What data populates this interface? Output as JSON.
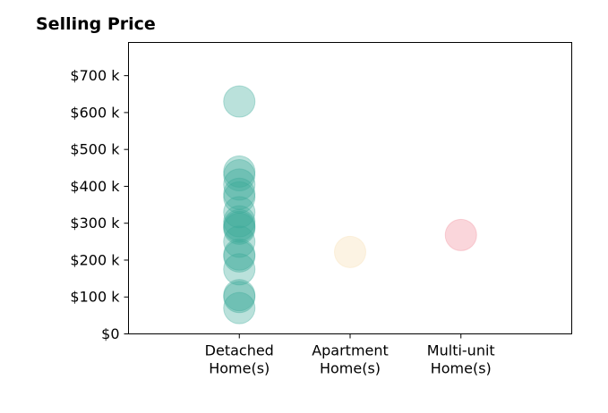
{
  "chart_data": {
    "type": "scatter",
    "title": "Selling Price",
    "xlabel": "",
    "ylabel": "",
    "categories": [
      "Detached\nHome(s)",
      "Apartment\nHome(s)",
      "Multi-unit\nHome(s)"
    ],
    "xlim": [
      0,
      4
    ],
    "ylim": [
      0,
      790
    ],
    "yticks": [
      0,
      100,
      200,
      300,
      400,
      500,
      600,
      700
    ],
    "ytick_labels": [
      "$0",
      "$100 k",
      "$200 k",
      "$300 k",
      "$400 k",
      "$500 k",
      "$600 k",
      "$700 k"
    ],
    "grid": false,
    "series": [
      {
        "category": "Detached\nHome(s)",
        "color": "#3aa899",
        "values": [
          630,
          440,
          430,
          405,
          380,
          370,
          330,
          305,
          295,
          290,
          285,
          250,
          215,
          210,
          175,
          105,
          100,
          70
        ]
      },
      {
        "category": "Apartment\nHome(s)",
        "color": "#f5deb0",
        "values": [
          222
        ]
      },
      {
        "category": "Multi-unit\nHome(s)",
        "color": "#f08a98",
        "values": [
          268
        ]
      }
    ]
  }
}
